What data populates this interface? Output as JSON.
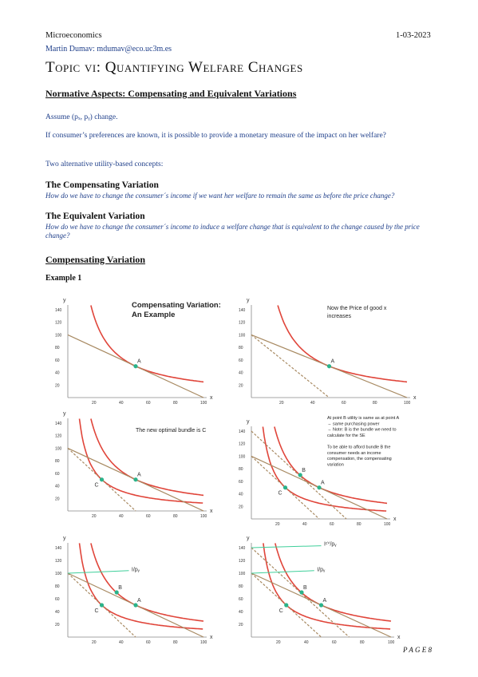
{
  "header": {
    "left": "Microeconomics",
    "right": "1-03-2023"
  },
  "author": "Martin Dumav: mdumav@eco.uc3m.es",
  "title": "Topic vi: Quantifying Welfare Changes",
  "section1": {
    "heading": "Normative Aspects: Compensating and Equivalent Variations",
    "p1": "Assume (pₓ, pᵧ) change.",
    "p2": "If consumer’s preferences are known, it is possible to provide a monetary measure of the impact on her welfare?",
    "p3": "Two alternative utility-based concepts:",
    "cv_title": "The Compensating Variation",
    "cv_text": "How do we have to change the consumer´s income if we want her welfare to remain the same as before the price change?",
    "ev_title": "The Equivalent Variation",
    "ev_text": "How do we have to change the consumer´s income to induce a welfare change that is equivalent to the change caused by the price change?"
  },
  "section2": {
    "heading": "Compensating Variation",
    "example": "Example 1"
  },
  "panels": [
    {
      "caption": [
        "Compensating Variation:",
        "An Example"
      ],
      "caption_bold": true
    },
    {
      "caption": [
        "Now the Price of good x",
        "increases"
      ],
      "caption_bold": false
    },
    {
      "caption": [
        "The new optimal bundle is C"
      ],
      "caption_bold": false
    },
    {
      "caption": [
        "At point B utility is same as at point A",
        "→ same purchasing power",
        "→ Note: B is the bundle we need to",
        "calculate for the SE",
        "",
        "To be able to afford bundle B the",
        "consumer needs an income",
        "compensation, the compensating",
        "variation"
      ],
      "caption_bold": false
    },
    {
      "caption": [],
      "caption_bold": false
    },
    {
      "caption": [],
      "caption_bold": false
    }
  ],
  "axes": {
    "y_label": "y",
    "x_label": "x",
    "y_ticks": [
      "20",
      "40",
      "60",
      "80",
      "100",
      "120",
      "140"
    ],
    "x_ticks": [
      "20",
      "40",
      "60",
      "80",
      "100"
    ]
  },
  "points": {
    "A": "A",
    "B": "B",
    "C": "C"
  },
  "labels": {
    "i_py": "I/pᵧ",
    "icv_py": "Iᶜⱽ/pᵧ"
  },
  "colors": {
    "curve": "#e0453a",
    "budget": "#a88a62",
    "point": "#2bb38a",
    "cv_line": "#3fcf9a"
  },
  "page_number": "P A G E  8"
}
